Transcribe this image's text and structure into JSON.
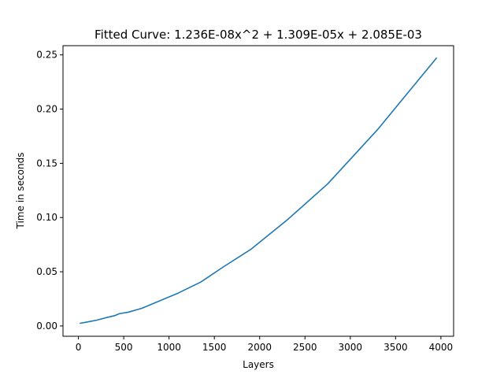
{
  "chart_data": {
    "type": "line",
    "title": "Fitted Curve: 1.236E-08x^2 + 1.309E-05x + 2.085E-03",
    "xlabel": "Layers",
    "ylabel": "Time in seconds",
    "xlim": [
      -170,
      4140
    ],
    "ylim": [
      -0.0095,
      0.2585
    ],
    "xticks": [
      0,
      500,
      1000,
      1500,
      2000,
      2500,
      3000,
      3500,
      4000
    ],
    "xtick_labels": [
      "0",
      "500",
      "1000",
      "1500",
      "2000",
      "2500",
      "3000",
      "3500",
      "4000"
    ],
    "yticks": [
      0.0,
      0.05,
      0.1,
      0.15,
      0.2,
      0.25
    ],
    "ytick_labels": [
      "0.00",
      "0.05",
      "0.10",
      "0.15",
      "0.20",
      "0.25"
    ],
    "grid": false,
    "series": [
      {
        "color": "#1f77b4",
        "x": [
          20,
          100,
          200,
          300,
          400,
          450,
          550,
          700,
          900,
          1100,
          1350,
          1600,
          1900,
          2300,
          2750,
          3300,
          3950
        ],
        "y": [
          0.0025,
          0.0037,
          0.0053,
          0.0075,
          0.0095,
          0.0113,
          0.0127,
          0.0163,
          0.0233,
          0.0303,
          0.0405,
          0.0545,
          0.0705,
          0.0975,
          0.131,
          0.181,
          0.247
        ]
      }
    ]
  }
}
